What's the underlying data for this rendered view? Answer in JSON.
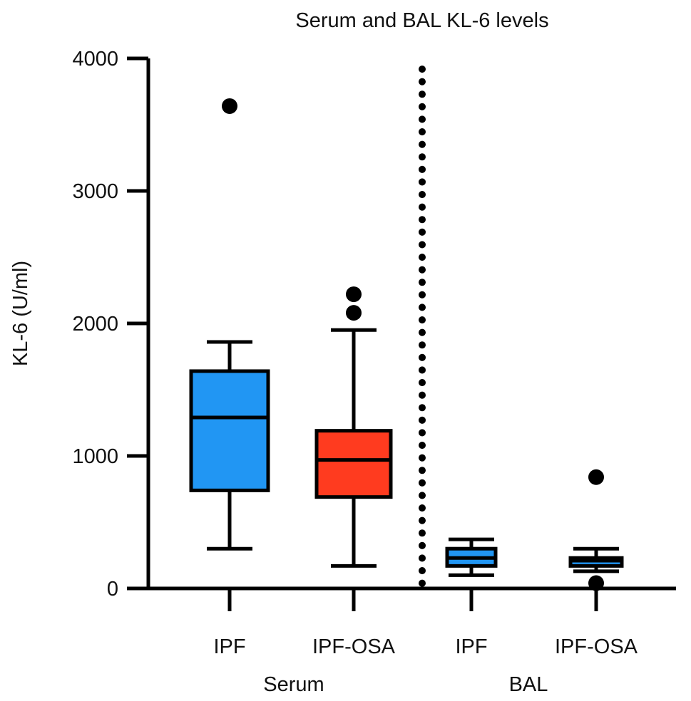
{
  "chart_data": {
    "type": "box",
    "title": "Serum and BAL KL-6 levels",
    "xlabel": "",
    "ylabel": "KL-6 (U/ml)",
    "ylim": [
      0,
      4000
    ],
    "yticks": [
      0,
      1000,
      2000,
      3000,
      4000
    ],
    "groups": [
      "Serum",
      "BAL"
    ],
    "categories": [
      "IPF",
      "IPF-OSA",
      "IPF",
      "IPF-OSA"
    ],
    "boxes": [
      {
        "group": "Serum",
        "category": "IPF",
        "color": "#2196F3",
        "whisker_low": 300,
        "q1": 740,
        "median": 1290,
        "q3": 1640,
        "whisker_high": 1860,
        "outliers": [
          3640
        ]
      },
      {
        "group": "Serum",
        "category": "IPF-OSA",
        "color": "#FF3B1F",
        "whisker_low": 170,
        "q1": 690,
        "median": 970,
        "q3": 1190,
        "whisker_high": 1950,
        "outliers": [
          2080,
          2220
        ]
      },
      {
        "group": "BAL",
        "category": "IPF",
        "color": "#2196F3",
        "whisker_low": 100,
        "q1": 170,
        "median": 230,
        "q3": 300,
        "whisker_high": 370,
        "outliers": []
      },
      {
        "group": "BAL",
        "category": "IPF-OSA",
        "color": "#2196F3",
        "whisker_low": 130,
        "q1": 170,
        "median": 210,
        "q3": 230,
        "whisker_high": 300,
        "outliers": [
          840,
          40
        ]
      }
    ],
    "grid": false,
    "legend": "none",
    "divider": "dotted line between Serum and BAL"
  }
}
